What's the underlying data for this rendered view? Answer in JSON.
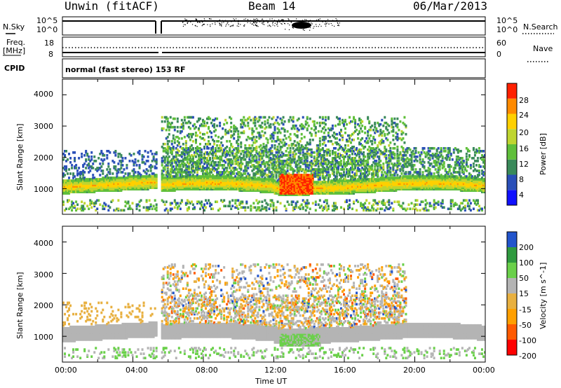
{
  "header": {
    "station": "Unwin (fitACF)",
    "beam": "Beam 14",
    "date": "06/Mar/2013"
  },
  "strip": {
    "nsky_label": "N.Sky",
    "nsearch_label": "N.Search",
    "freq_label_1": "Freq.",
    "freq_label_2": "[MHz]",
    "nave_label": "Nave",
    "cpid_label": "CPID",
    "cpid_text": "normal (fast stereo) 153 RF",
    "noise_ticks_left": [
      "10^5",
      "10^0"
    ],
    "noise_ticks_right": [
      "10^5",
      "10^0"
    ],
    "freq_ticks": [
      "18",
      "8"
    ],
    "nave_ticks": [
      "60",
      "0"
    ]
  },
  "colors": {
    "power_scale": [
      "#1010ff",
      "#2a4fb8",
      "#3a8a5a",
      "#5fbf3a",
      "#bfd530",
      "#ffd000",
      "#ff8a00",
      "#ff2000"
    ],
    "velocity_scale": [
      "#ff0000",
      "#ff5a00",
      "#ff9f00",
      "#e8b040",
      "#b4b4b4",
      "#6ad04a",
      "#2f9a3f",
      "#2255cc"
    ],
    "axis": "#000000"
  },
  "chart_data": [
    {
      "type": "heatmap",
      "title": "Power",
      "xlabel": "Time UT",
      "ylabel": "Slant Range [km]",
      "xlim": [
        "00:00",
        "24:00"
      ],
      "ylim": [
        180,
        4500
      ],
      "x_ticks": [
        "00:00",
        "04:00",
        "08:00",
        "12:00",
        "16:00",
        "20:00",
        "00:00"
      ],
      "y_ticks": [
        "1000",
        "2000",
        "3000",
        "4000"
      ],
      "colorbar": {
        "label": "Power [dB]",
        "ticks": [
          "4",
          "8",
          "12",
          "16",
          "20",
          "24",
          "28"
        ],
        "range": [
          0,
          30
        ]
      },
      "features": [
        {
          "time_start": "00:00",
          "time_end": "05:20",
          "range_km": [
            850,
            1350
          ],
          "power_db": 20
        },
        {
          "time_start": "05:40",
          "time_end": "24:00",
          "range_km": [
            850,
            1500
          ],
          "power_db": 18
        },
        {
          "time_start": "12:30",
          "time_end": "14:00",
          "range_km": [
            800,
            1400
          ],
          "power_db": 28
        }
      ]
    },
    {
      "type": "heatmap",
      "title": "Velocity",
      "xlabel": "Time UT",
      "ylabel": "Slant Range [km]",
      "xlim": [
        "00:00",
        "24:00"
      ],
      "ylim": [
        180,
        4500
      ],
      "x_ticks": [
        "00:00",
        "04:00",
        "08:00",
        "12:00",
        "16:00",
        "20:00",
        "00:00"
      ],
      "y_ticks": [
        "1000",
        "2000",
        "3000",
        "4000"
      ],
      "colorbar": {
        "label": "Velocity [m s^-1]",
        "ticks": [
          "200",
          "100",
          "50",
          "15",
          "-15",
          "-50",
          "-100",
          "-200"
        ]
      }
    }
  ]
}
